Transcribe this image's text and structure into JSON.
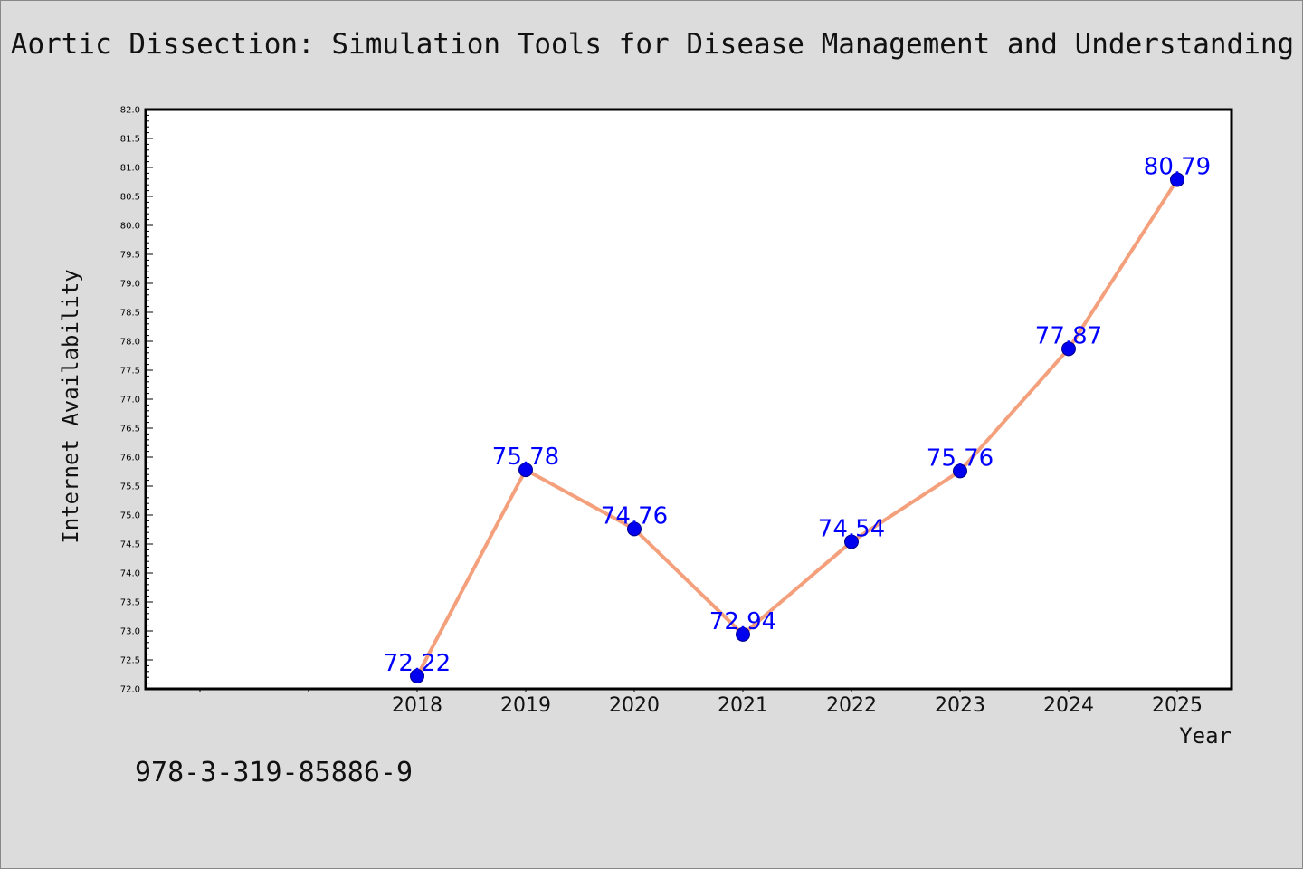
{
  "chart_data": {
    "type": "line",
    "title": "Aortic Dissection: Simulation Tools for Disease Management and Understanding",
    "xlabel": "Year",
    "ylabel": "Internet Availability",
    "categories": [
      "2018",
      "2019",
      "2020",
      "2021",
      "2022",
      "2023",
      "2024",
      "2025"
    ],
    "series": [
      {
        "values": [
          72.22,
          75.78,
          74.76,
          72.94,
          74.54,
          75.76,
          77.87,
          80.79
        ],
        "data_labels": [
          "72.22",
          "75.78",
          "74.76",
          "72.94",
          "74.54",
          "75.76",
          "77.87",
          "80.79"
        ]
      }
    ],
    "ylim": [
      72.0,
      82.0
    ],
    "yticks": [
      "72.0",
      "72.5",
      "73.0",
      "73.5",
      "74.0",
      "74.5",
      "75.0",
      "75.5",
      "76.0",
      "76.5",
      "77.0",
      "77.5",
      "78.0",
      "78.5",
      "79.0",
      "79.5",
      "80.0",
      "80.5",
      "81.0",
      "81.5",
      "82.0"
    ],
    "grid": false,
    "legend": false,
    "colors": {
      "line": "#f4a07c",
      "marker": "#0000ee",
      "data_label": "#0000ff",
      "background": "#dcdcdc",
      "plot_background": "#ffffff"
    }
  },
  "footer": {
    "isbn": "978-3-319-85886-9"
  }
}
